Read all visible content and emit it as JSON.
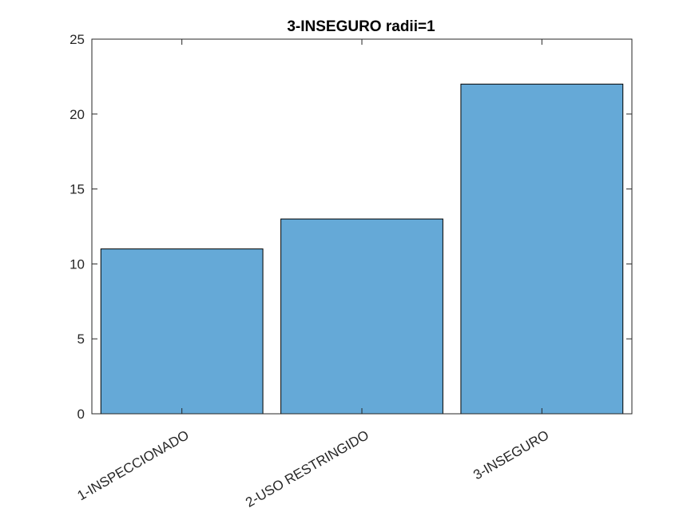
{
  "chart_data": {
    "type": "bar",
    "title": "3-INSEGURO radii=1",
    "xlabel": "",
    "ylabel": "",
    "categories": [
      "1-INSPECCIONADO",
      "2-USO RESTRINGIDO",
      "3-INSEGURO"
    ],
    "values": [
      11,
      13,
      22
    ],
    "ylim": [
      0,
      25
    ],
    "yticks": [
      0,
      5,
      10,
      15,
      20,
      25
    ],
    "bar_color": "#65a9d7",
    "grid": false,
    "legend": "none"
  }
}
